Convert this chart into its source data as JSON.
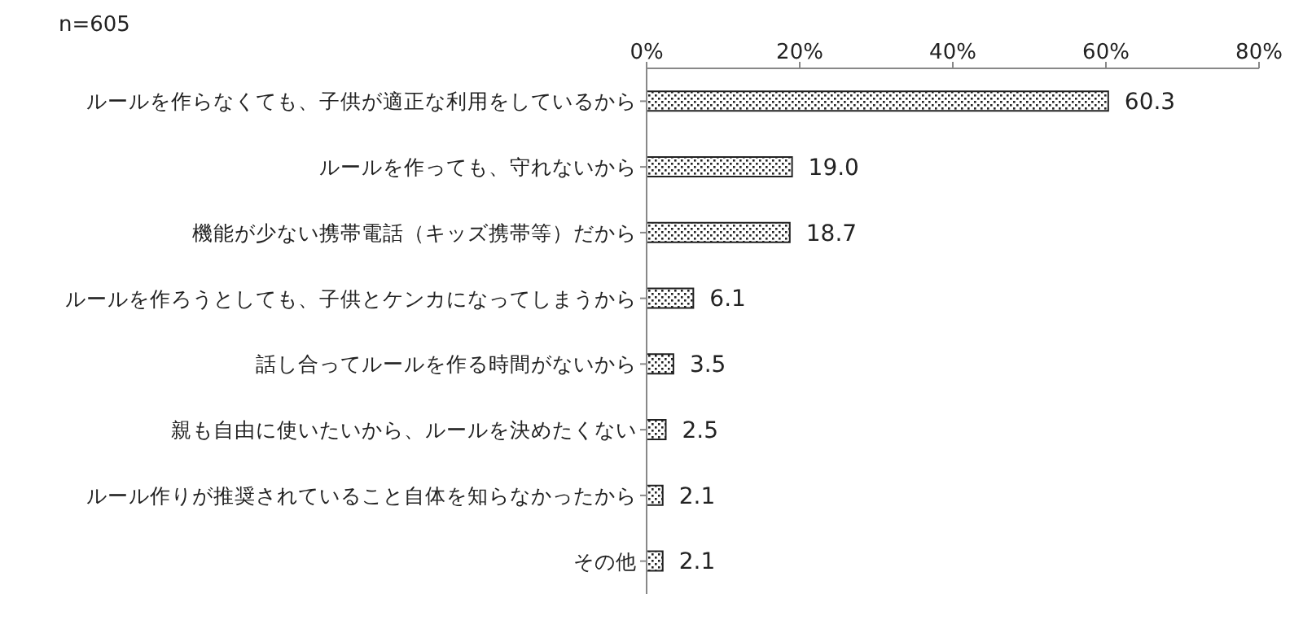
{
  "chart_data": {
    "type": "bar",
    "orientation": "horizontal",
    "categories": [
      "ルールを作らなくても、子供が適正な利用をしているから",
      "ルールを作っても、守れないから",
      "機能が少ない携帯電話（キッズ携帯等）だから",
      "ルールを作ろうとしても、子供とケンカになってしまうから",
      "話し合ってルールを作る時間がないから",
      "親も自由に使いたいから、ルールを決めたくない",
      "ルール作りが推奨されていること自体を知らなかったから",
      "その他"
    ],
    "values": [
      60.3,
      19.0,
      18.7,
      6.1,
      3.5,
      2.5,
      2.1,
      2.1
    ],
    "color": "#222222",
    "value_labels": [
      "60.3",
      "19.0",
      "18.7",
      "6.1",
      "3.5",
      "2.5",
      "2.1",
      "2.1"
    ],
    "xlim": [
      0,
      80
    ],
    "xticks": [
      {
        "value": 0,
        "label": "0%"
      },
      {
        "value": 20,
        "label": "20%"
      },
      {
        "value": 40,
        "label": "40%"
      },
      {
        "value": 60,
        "label": "60%"
      },
      {
        "value": 80,
        "label": "80%"
      }
    ],
    "grid": false,
    "legend": false,
    "annotations": [
      "n=605"
    ]
  }
}
